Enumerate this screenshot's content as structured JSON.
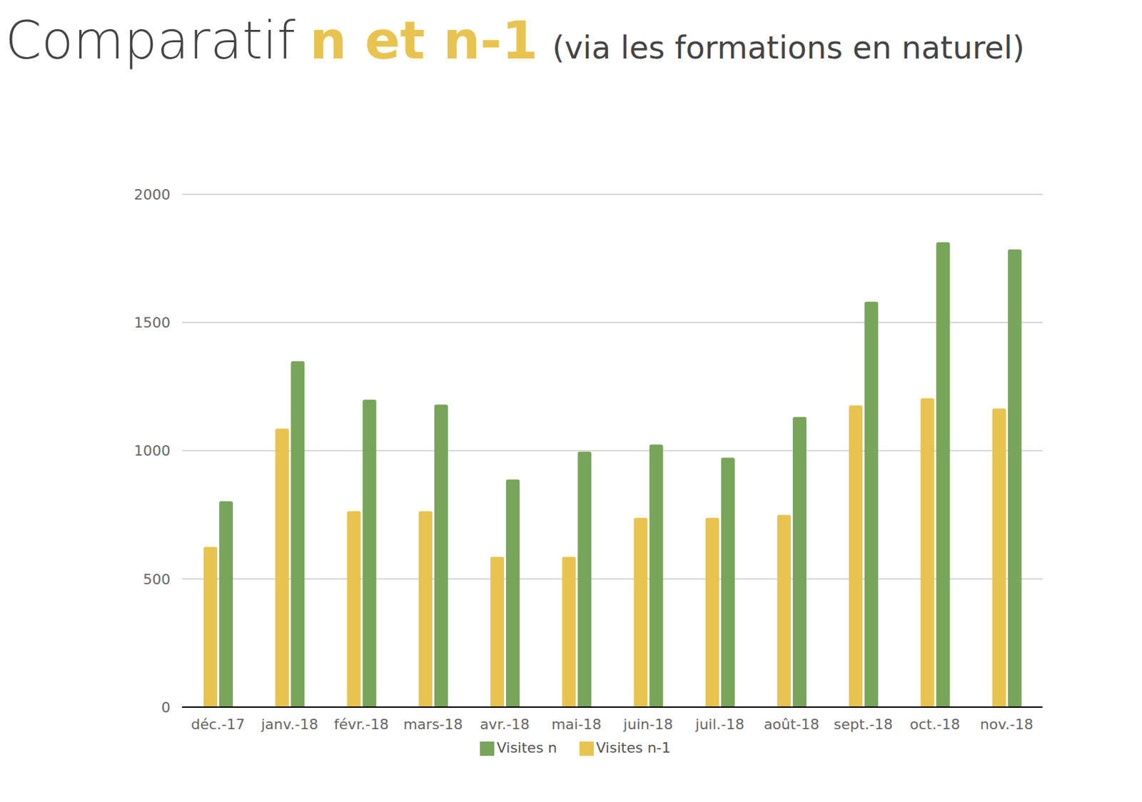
{
  "chart_data": {
    "type": "bar",
    "title": "Comparatif n et n-1",
    "subtitle": "(via les formations en naturel)",
    "categories": [
      "déc.-17",
      "janv.-18",
      "févr.-18",
      "mars-18",
      "avr.-18",
      "mai-18",
      "juin-18",
      "juil.-18",
      "août-18",
      "sept.-18",
      "oct.-18",
      "nov.-18"
    ],
    "series": [
      {
        "name": "Visites n-1",
        "color": "#e8c34f",
        "values": [
          625,
          1086,
          764,
          764,
          586,
          586,
          738,
          738,
          750,
          1177,
          1205,
          1165
        ]
      },
      {
        "name": "Visites n",
        "color": "#77a55a",
        "values": [
          803,
          1349,
          1199,
          1180,
          888,
          996,
          1024,
          973,
          1132,
          1581,
          1813,
          1785
        ]
      }
    ],
    "ylim": [
      0,
      2000
    ],
    "yticks": [
      0,
      500,
      1000,
      1500,
      2000
    ],
    "grid": true,
    "legend": "bottom"
  }
}
